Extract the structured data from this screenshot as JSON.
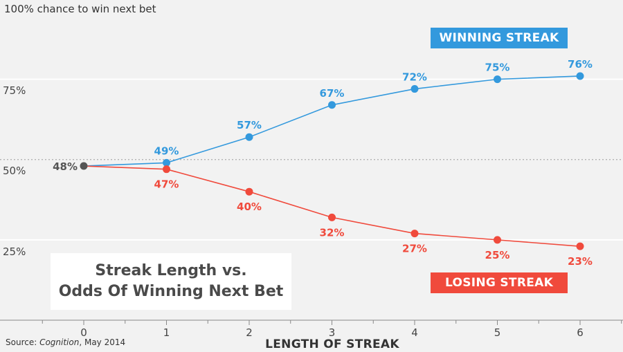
{
  "chart_data": {
    "type": "line",
    "y_axis_note": "100% chance to win next bet",
    "y_ticks": [
      "75%",
      "50%",
      "25%"
    ],
    "y_tick_values": [
      75,
      50,
      25
    ],
    "ylim": [
      0,
      100
    ],
    "reference_line": 50,
    "x": [
      0,
      1,
      2,
      3,
      4,
      5,
      6
    ],
    "x_tick_labels": [
      "0",
      "1",
      "2",
      "3",
      "4",
      "5",
      "6"
    ],
    "xlabel": "LENGTH OF STREAK",
    "start_point": {
      "x": 0,
      "value": 48,
      "label": "48%",
      "color": "#555555"
    },
    "series": [
      {
        "name": "WINNING STREAK",
        "color": "#3399dd",
        "x": [
          0,
          1,
          2,
          3,
          4,
          5,
          6
        ],
        "values": [
          48,
          49,
          57,
          67,
          72,
          75,
          76
        ],
        "labels": [
          "48%",
          "49%",
          "57%",
          "67%",
          "72%",
          "75%",
          "76%"
        ]
      },
      {
        "name": "LOSING STREAK",
        "color": "#f04a3c",
        "x": [
          0,
          1,
          2,
          3,
          4,
          5,
          6
        ],
        "values": [
          48,
          47,
          40,
          32,
          27,
          25,
          23
        ],
        "labels": [
          "48%",
          "47%",
          "40%",
          "32%",
          "27%",
          "25%",
          "23%"
        ]
      }
    ],
    "title_lines": [
      "Streak Length vs.",
      "Odds Of Winning Next Bet"
    ],
    "source_prefix": "Source: ",
    "source_publication": "Cognition",
    "source_suffix": ", May 2014",
    "grid": true
  }
}
